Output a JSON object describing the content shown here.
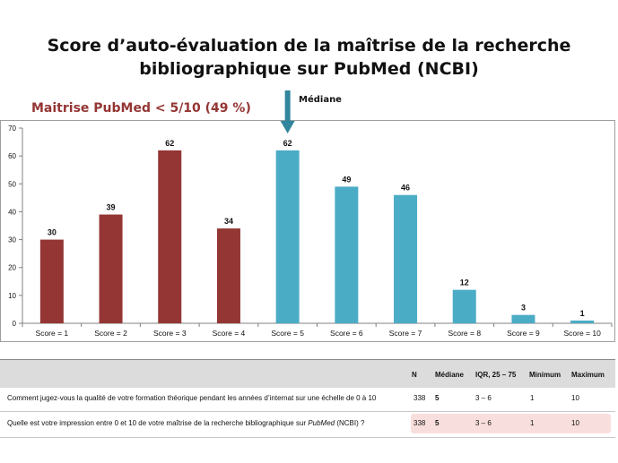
{
  "title_line1": "Score d’auto-évaluation de la maîtrise de la recherche",
  "title_line2": "bibliographique sur PubMed (NCBI)",
  "subtitle": "Maitrise PubMed < 5/10 (49 %)",
  "median_label": "Médiane",
  "colors": {
    "low": "#943634",
    "high": "#4bacc6",
    "arrow": "#31859c"
  },
  "chart_data": {
    "type": "bar",
    "categories": [
      "Score = 1",
      "Score = 2",
      "Score = 3",
      "Score = 4",
      "Score = 5",
      "Score = 6",
      "Score = 7",
      "Score = 8",
      "Score = 9",
      "Score = 10"
    ],
    "values": [
      30,
      39,
      62,
      34,
      62,
      49,
      46,
      12,
      3,
      1
    ],
    "bar_colors": [
      "#943634",
      "#943634",
      "#943634",
      "#943634",
      "#4bacc6",
      "#4bacc6",
      "#4bacc6",
      "#4bacc6",
      "#4bacc6",
      "#4bacc6"
    ],
    "ylim": [
      0,
      70
    ],
    "yticks": [
      "0",
      "10",
      "20",
      "30",
      "40",
      "50",
      "60",
      "70"
    ],
    "grid": false,
    "median_category": "Score = 5"
  },
  "stats_table": {
    "headers": [
      "N",
      "Médiane",
      "IQR, 25 – 75",
      "Minimum",
      "Maximum"
    ],
    "rows": [
      {
        "question": "Comment jugez-vous la qualité de votre formation théorique pendant les années d’internat sur une échelle de 0 à 10",
        "n": "338",
        "median": "5",
        "iqr": "3 – 6",
        "min": "1",
        "max": "10"
      },
      {
        "question_pre": "Quelle est votre impression entre 0 et 10 de votre maîtrise de la recherche bibliographique sur ",
        "question_em": "PubMed",
        "question_post": " (NCBI) ?",
        "n": "338",
        "median": "5",
        "iqr": "3 – 6",
        "min": "1",
        "max": "10"
      }
    ]
  }
}
